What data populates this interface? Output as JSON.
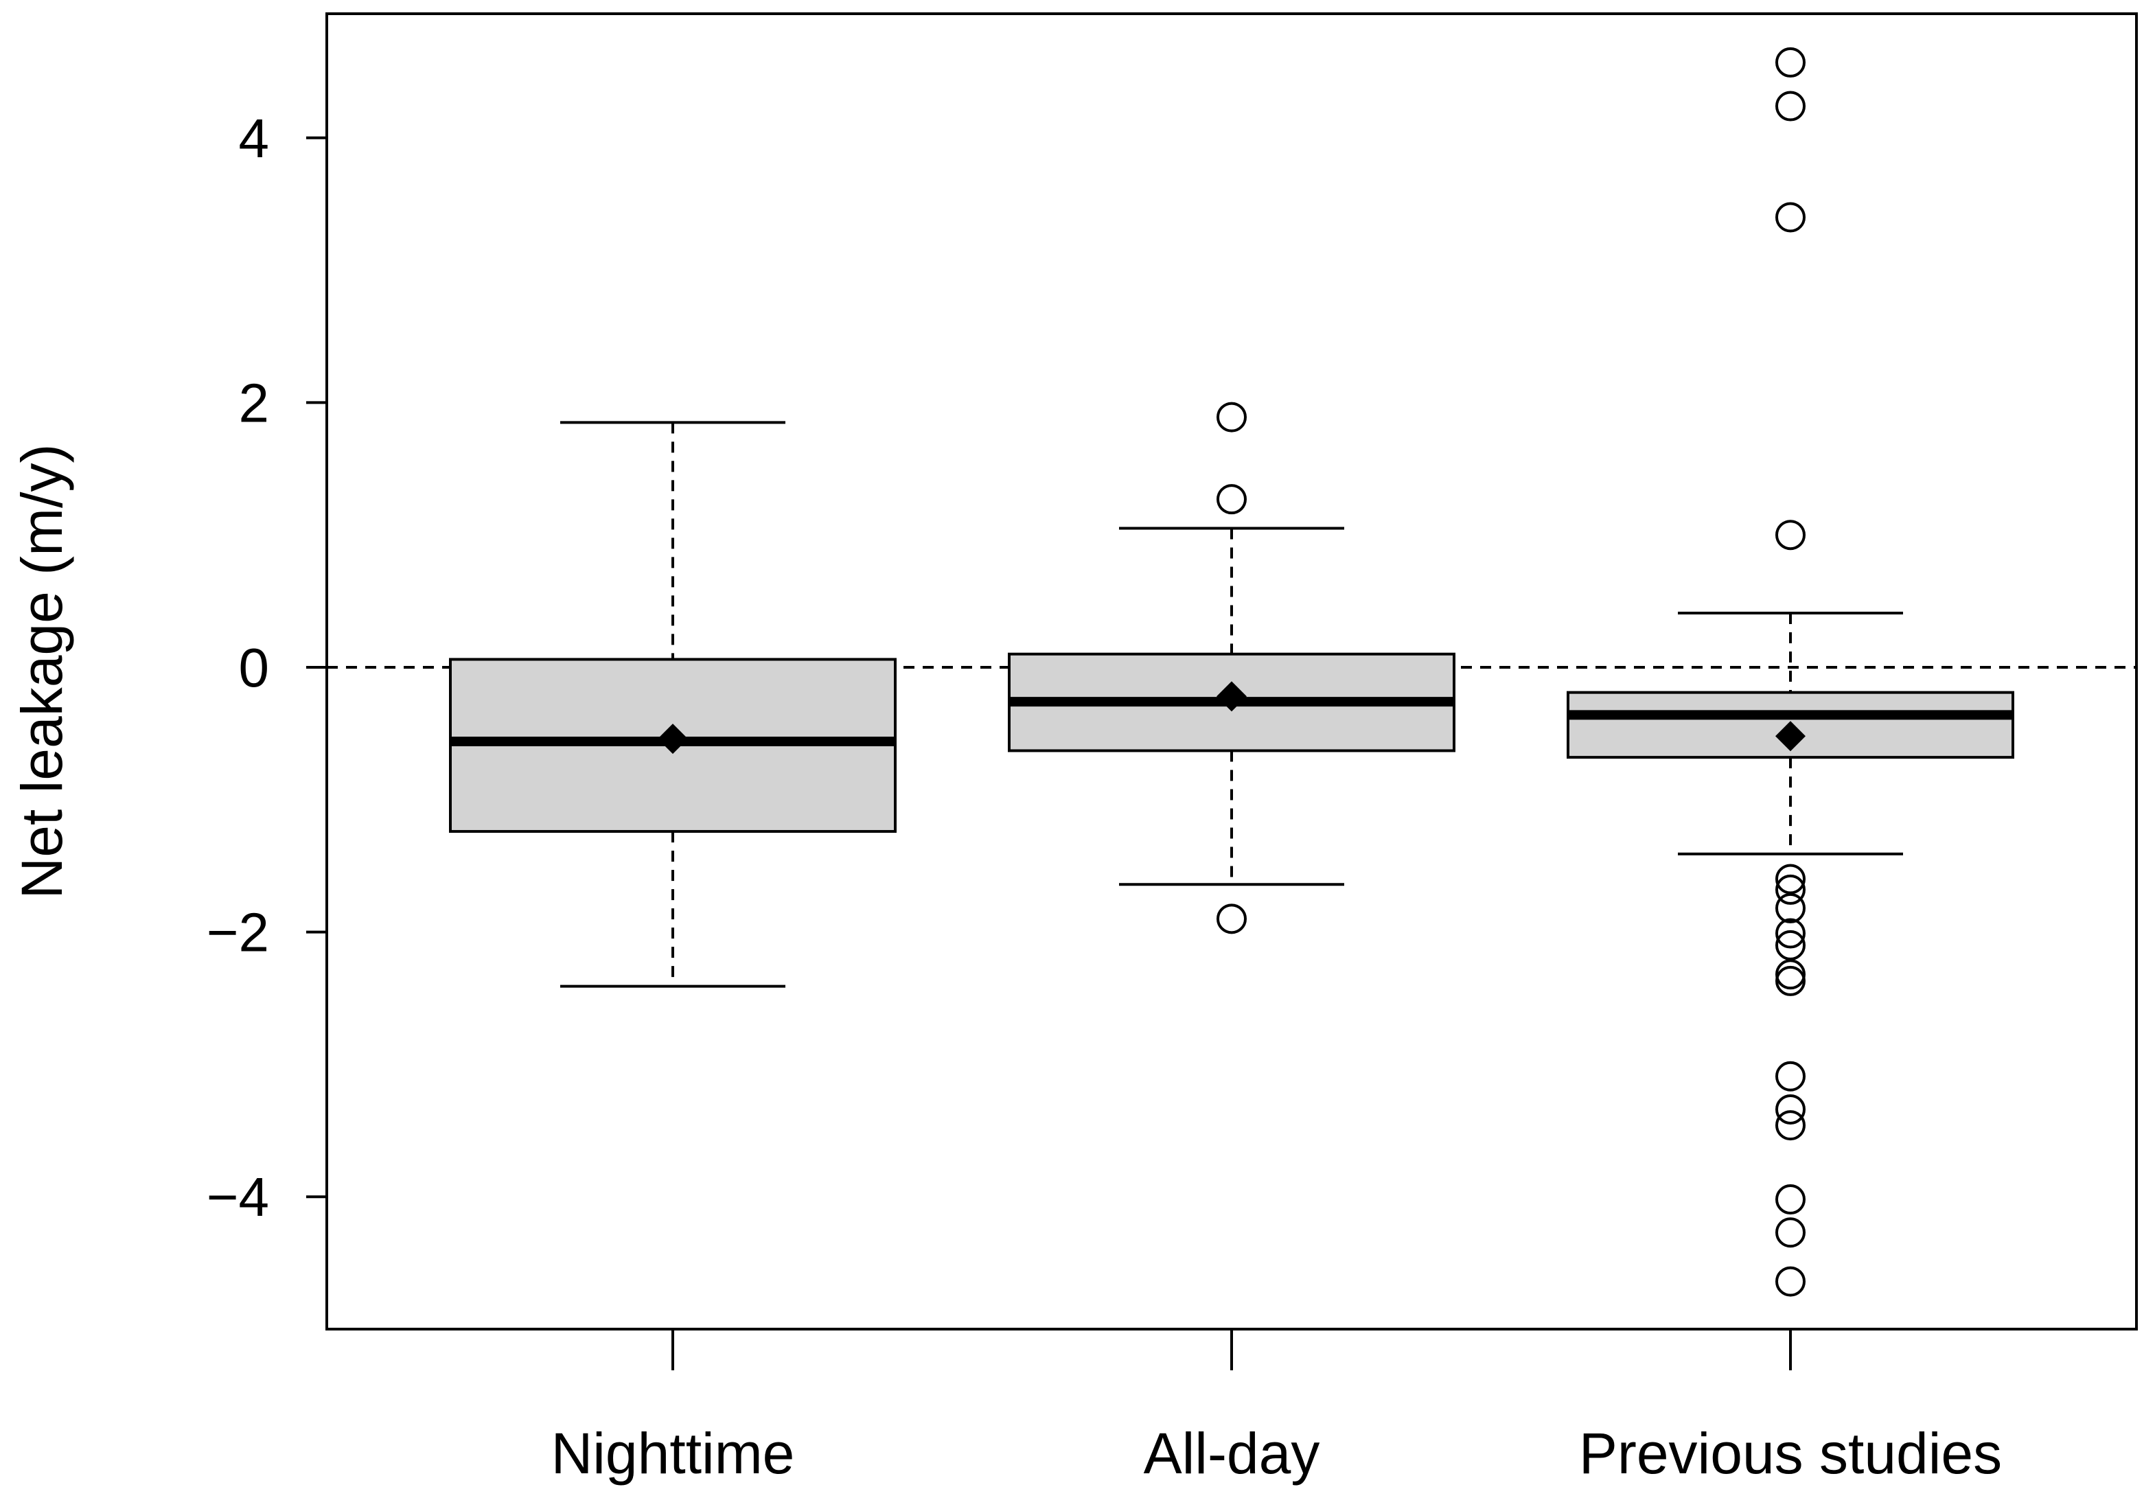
{
  "chart_data": {
    "type": "box",
    "title": "",
    "xlabel": "",
    "ylabel": "Net leakage (m/y)",
    "ylim": [
      -4.95,
      4.95
    ],
    "yticks": [
      -4,
      -2,
      0,
      2,
      4
    ],
    "ytick_labels": [
      "−4",
      "−2",
      "0",
      "2",
      "4"
    ],
    "reference_line": 0,
    "grid": false,
    "box_fill": "#d3d3d3",
    "categories": [
      "Nighttime",
      "All-day",
      "Previous studies"
    ],
    "boxes": [
      {
        "name": "Nighttime",
        "whisker_low": -2.41,
        "q1": -1.24,
        "median": -0.56,
        "mean": -0.54,
        "q3": 0.06,
        "whisker_high": 1.85,
        "outliers": []
      },
      {
        "name": "All-day",
        "whisker_low": -1.64,
        "q1": -0.63,
        "median": -0.26,
        "mean": -0.22,
        "q3": 0.1,
        "whisker_high": 1.05,
        "outliers": [
          1.89,
          1.27,
          -1.9
        ]
      },
      {
        "name": "Previous studies",
        "whisker_low": -1.41,
        "q1": -0.68,
        "median": -0.36,
        "mean": -0.52,
        "q3": -0.19,
        "whisker_high": 0.41,
        "outliers": [
          4.57,
          4.24,
          3.4,
          1.0,
          -1.6,
          -1.68,
          -1.82,
          -2.01,
          -2.1,
          -2.32,
          -2.37,
          -3.09,
          -3.34,
          -3.46,
          -4.02,
          -4.27,
          -4.64
        ]
      }
    ]
  }
}
